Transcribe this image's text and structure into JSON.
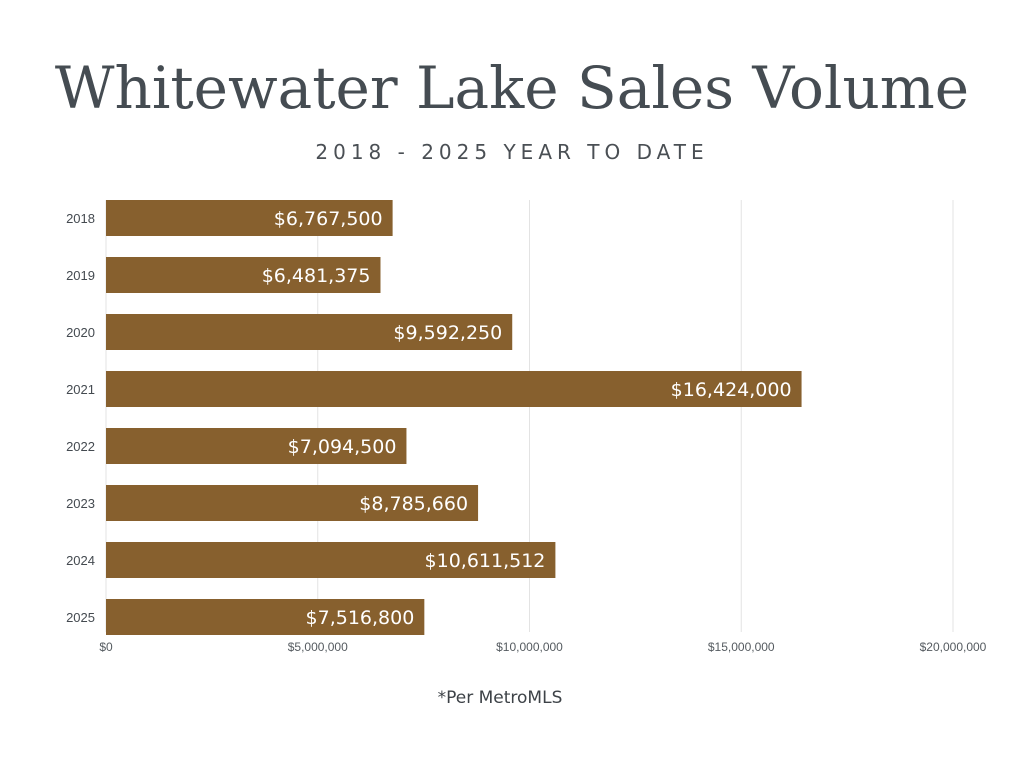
{
  "title": "Whitewater Lake Sales Volume",
  "subtitle": "2018 - 2025 YEAR TO DATE",
  "note": "*Per MetroMLS",
  "colors": {
    "bar": "#87602e",
    "grid": "#e3e3e3",
    "text": "#454c52"
  },
  "chart_data": {
    "type": "bar",
    "orientation": "horizontal",
    "categories": [
      "2018",
      "2019",
      "2020",
      "2021",
      "2022",
      "2023",
      "2024",
      "2025"
    ],
    "values": [
      6767500,
      6481375,
      9592250,
      16424000,
      7094500,
      8785660,
      10611512,
      7516800
    ],
    "data_labels": [
      "$6,767,500",
      "$6,481,375",
      "$9,592,250",
      "$16,424,000",
      "$7,094,500",
      "$8,785,660",
      "$10,611,512",
      "$7,516,800"
    ],
    "xlim": [
      0,
      20000000
    ],
    "xticks": [
      0,
      5000000,
      10000000,
      15000000,
      20000000
    ],
    "xtick_labels": [
      "$0",
      "$5,000,000",
      "$10,000,000",
      "$15,000,000",
      "$20,000,000"
    ],
    "grid": true,
    "legend": "none"
  }
}
